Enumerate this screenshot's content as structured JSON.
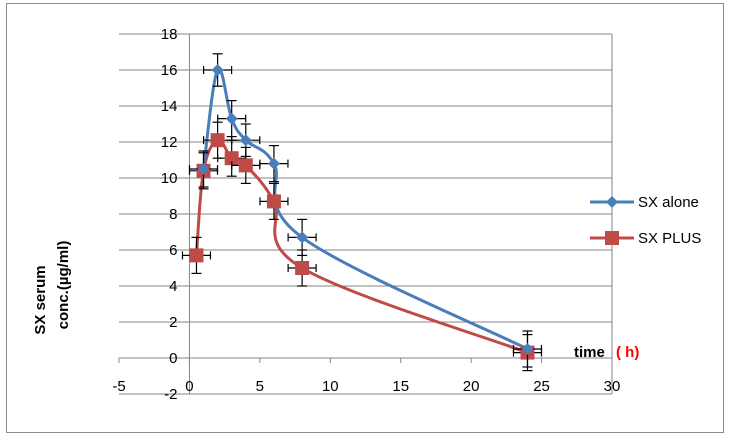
{
  "chart_data": {
    "type": "line",
    "xlabel": "time",
    "xlabel_unit": "( h)",
    "ylabel_line1": "SX  serum",
    "ylabel_line2": "conc.(µg/ml)",
    "xlim": [
      -5,
      30
    ],
    "ylim": [
      -2,
      18
    ],
    "x_ticks": [
      -5,
      0,
      5,
      10,
      15,
      20,
      25,
      30
    ],
    "y_ticks": [
      -2,
      0,
      2,
      4,
      6,
      8,
      10,
      12,
      14,
      16,
      18
    ],
    "grid": "horizontal",
    "legend_position": "right",
    "series": [
      {
        "name": "SX alone",
        "color": "#4a7ebb",
        "marker": "diamond",
        "x": [
          1,
          2,
          3,
          4,
          6,
          8,
          24
        ],
        "y": [
          10.5,
          16,
          13.3,
          12.1,
          10.8,
          6.7,
          0.5
        ],
        "err": [
          1.0,
          0.9,
          1.0,
          0.9,
          1.0,
          1.0,
          1.0
        ]
      },
      {
        "name": "SX PLUS",
        "color": "#be4b48",
        "marker": "square",
        "x": [
          0.5,
          1,
          2,
          3,
          4,
          6,
          8,
          24
        ],
        "y": [
          5.7,
          10.4,
          12.1,
          11.1,
          10.7,
          8.7,
          5,
          0.3
        ],
        "err": [
          1.0,
          1.0,
          1.0,
          1.0,
          1.0,
          1.0,
          1.0,
          1.0
        ]
      }
    ]
  }
}
